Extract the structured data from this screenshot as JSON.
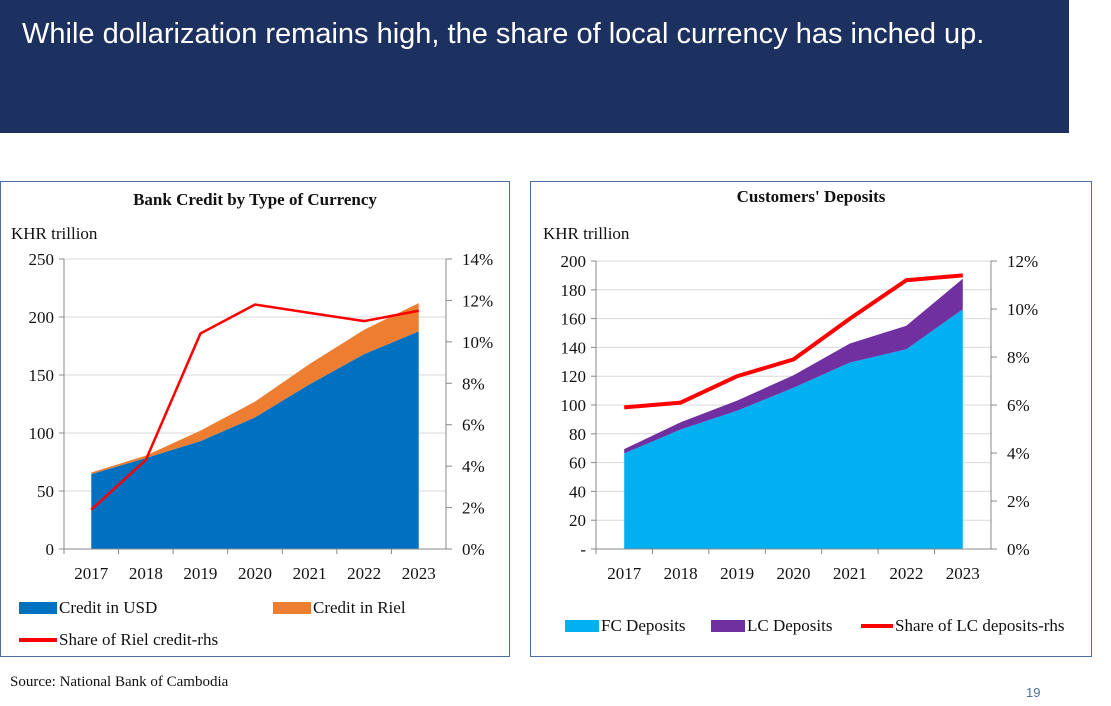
{
  "slide": {
    "title": "While dollarization remains high, the share of local currency has inched up.",
    "source": "Source: National Bank of Cambodia",
    "page_number": "19"
  },
  "chart_data": [
    {
      "type": "area",
      "stacked": true,
      "title": "Bank Credit by Type of Currency",
      "ylabel": "KHR trillion",
      "categories": [
        "2017",
        "2018",
        "2019",
        "2020",
        "2021",
        "2022",
        "2023"
      ],
      "ylim": [
        0,
        250
      ],
      "yticks": [
        "0",
        "50",
        "100",
        "150",
        "200",
        "250"
      ],
      "y2lim": [
        0,
        14
      ],
      "y2ticks": [
        "0%",
        "2%",
        "4%",
        "6%",
        "8%",
        "10%",
        "12%",
        "14%"
      ],
      "grid": true,
      "legend": "bottom",
      "series": [
        {
          "name": "Credit in USD",
          "type": "area",
          "axis": "left",
          "color": "#0070c0",
          "values": [
            64.6,
            78.4,
            93,
            113.5,
            142,
            168,
            187.6
          ]
        },
        {
          "name": "Credit in Riel",
          "type": "area",
          "axis": "left",
          "color": "#ed7d31",
          "values": [
            1.4,
            2.1,
            9,
            13.5,
            17.5,
            21,
            24.4
          ]
        },
        {
          "name": "Share of Riel credit-rhs",
          "type": "line",
          "axis": "right",
          "unit": "%",
          "color": "#ff0000",
          "values": [
            1.9,
            4.3,
            10.4,
            11.8,
            11.4,
            11.0,
            11.5
          ]
        }
      ]
    },
    {
      "type": "area",
      "stacked": true,
      "title": "Customers' Deposits",
      "ylabel": "KHR trillion",
      "categories": [
        "2017",
        "2018",
        "2019",
        "2020",
        "2021",
        "2022",
        "2023"
      ],
      "ylim": [
        0,
        200
      ],
      "yticks": [
        "-",
        "20",
        "40",
        "60",
        "80",
        "100",
        "120",
        "140",
        "160",
        "180",
        "200"
      ],
      "y2lim": [
        0,
        12
      ],
      "y2ticks": [
        "0%",
        "2%",
        "4%",
        "6%",
        "8%",
        "10%",
        "12%"
      ],
      "grid": true,
      "legend": "bottom",
      "series": [
        {
          "name": "FC Deposits",
          "type": "area",
          "axis": "left",
          "color": "#00b0f0",
          "values": [
            66.4,
            83,
            96,
            112,
            129.5,
            138.7,
            166.5
          ]
        },
        {
          "name": "LC Deposits",
          "type": "area",
          "axis": "left",
          "color": "#7030a0",
          "values": [
            3,
            5,
            7,
            8.7,
            13.2,
            16.3,
            21.2
          ]
        },
        {
          "name": "Share of LC deposits-rhs",
          "type": "line",
          "axis": "right",
          "unit": "%",
          "color": "#ff0000",
          "values": [
            5.9,
            6.1,
            7.2,
            7.9,
            9.6,
            11.2,
            11.4
          ]
        }
      ]
    }
  ]
}
